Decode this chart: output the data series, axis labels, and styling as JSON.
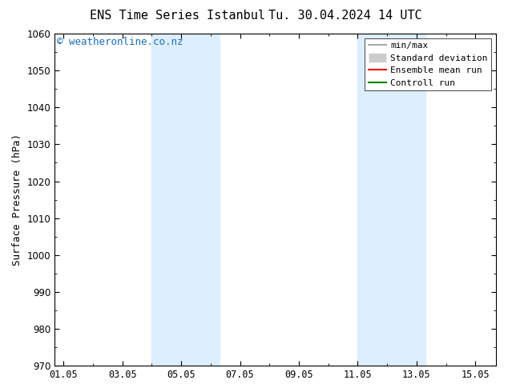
{
  "title_left": "ENS Time Series Istanbul",
  "title_right": "Tu. 30.04.2024 14 UTC",
  "ylabel": "Surface Pressure (hPa)",
  "ylim": [
    970,
    1060
  ],
  "yticks": [
    970,
    980,
    990,
    1000,
    1010,
    1020,
    1030,
    1040,
    1050,
    1060
  ],
  "xtick_labels": [
    "01.05",
    "03.05",
    "05.05",
    "07.05",
    "09.05",
    "11.05",
    "13.05",
    "15.05"
  ],
  "xtick_positions": [
    0,
    2,
    4,
    6,
    8,
    10,
    12,
    14
  ],
  "xlim": [
    -0.3,
    14.7
  ],
  "shaded_bands": [
    {
      "x_start": 3.0,
      "x_end": 5.3
    },
    {
      "x_start": 10.0,
      "x_end": 12.3
    }
  ],
  "shaded_color": "#ddeeff",
  "background_color": "#ffffff",
  "watermark_text": "© weatheronline.co.nz",
  "watermark_color": "#1a6eb5",
  "legend_entries": [
    {
      "label": "min/max",
      "color": "#aaaaaa",
      "lw": 1.5
    },
    {
      "label": "Standard deviation",
      "color": "#cccccc",
      "lw": 8
    },
    {
      "label": "Ensemble mean run",
      "color": "#ff0000",
      "lw": 1.5
    },
    {
      "label": "Controll run",
      "color": "#008000",
      "lw": 1.5
    }
  ],
  "font_family": "DejaVu Sans Mono",
  "title_fontsize": 11,
  "axis_label_fontsize": 9,
  "tick_fontsize": 8.5,
  "watermark_fontsize": 9,
  "legend_fontsize": 8
}
